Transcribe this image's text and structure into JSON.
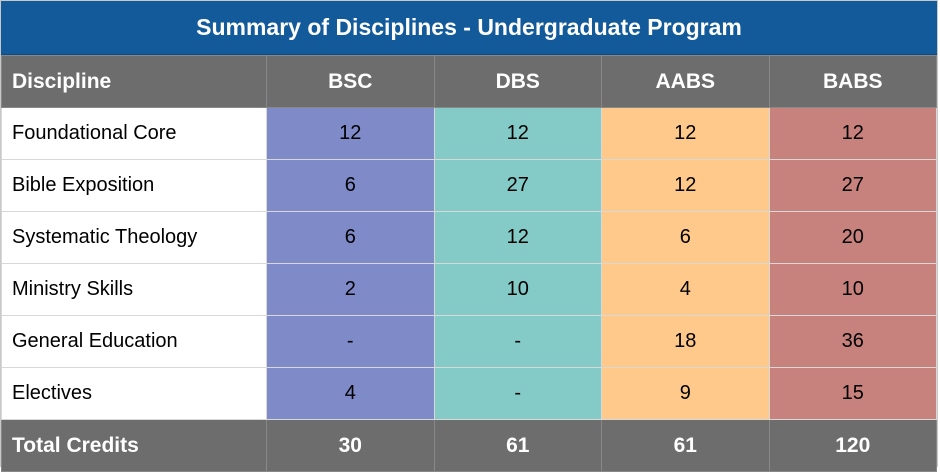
{
  "title": "Summary of Disciplines - Undergraduate Program",
  "colors": {
    "title_bg": "#135a9a",
    "header_bg": "#6d6d6d",
    "col_bsc": "#7f8ac8",
    "col_dbs": "#84cac6",
    "col_aabs": "#fec98a",
    "col_babs": "#c8827e"
  },
  "table": {
    "headers": [
      "Discipline",
      "BSC",
      "DBS",
      "AABS",
      "BABS"
    ],
    "rows": [
      [
        "Foundational Core",
        "12",
        "12",
        "12",
        "12"
      ],
      [
        "Bible Exposition",
        "6",
        "27",
        "12",
        "27"
      ],
      [
        "Systematic Theology",
        "6",
        "12",
        "6",
        "20"
      ],
      [
        "Ministry Skills",
        "2",
        "10",
        "4",
        "10"
      ],
      [
        "General Education",
        "-",
        "-",
        "18",
        "36"
      ],
      [
        "Electives",
        "4",
        "-",
        "9",
        "15"
      ]
    ],
    "footer": [
      "Total Credits",
      "30",
      "61",
      "61",
      "120"
    ]
  }
}
